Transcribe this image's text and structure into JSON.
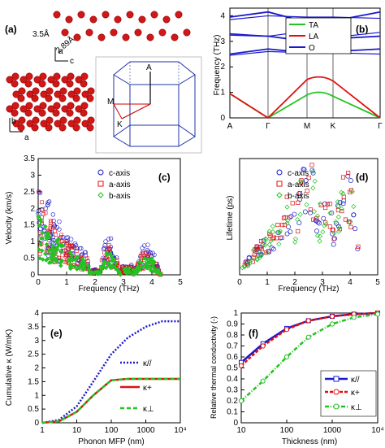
{
  "panels": {
    "a": {
      "label": "(a)",
      "dist1": "3.5Å",
      "dist2": "2.89Å",
      "axis_top": {
        "up": "a",
        "right": "c"
      },
      "axis_bottom": {
        "up": "b",
        "right": "a"
      },
      "bz_points": {
        "A": "A",
        "M": "M",
        "K": "K"
      }
    },
    "b": {
      "label": "(b)",
      "ylabel": "Frequency (THz)",
      "yticks": [
        "0",
        "1",
        "2",
        "3",
        "4"
      ],
      "xticks": [
        "A",
        "Γ",
        "M",
        "K",
        "Γ"
      ],
      "legend": [
        "TA",
        "LA",
        "O"
      ],
      "colors": {
        "TA": "#22c422",
        "LA": "#e01010",
        "O": "#1a1acc"
      }
    },
    "c": {
      "label": "(c)",
      "ylabel": "Velocity (km/s)",
      "xlabel": "Frequency (THz)",
      "yticks": [
        "0",
        "0.5",
        "1",
        "1.5",
        "2",
        "2.5",
        "3",
        "3.5"
      ],
      "xticks": [
        "0",
        "1",
        "2",
        "3",
        "4",
        "5"
      ],
      "legend": [
        "c-axis",
        "a-axis",
        "b-axis"
      ]
    },
    "d": {
      "label": "(d)",
      "ylabel": "Lifetime (ps)",
      "xlabel": "Frequency (THz)",
      "xticks": [
        "0",
        "1",
        "2",
        "3",
        "4",
        "5"
      ],
      "legend": [
        "c-axis",
        "a-axis",
        "b-axis"
      ]
    },
    "e": {
      "label": "(e)",
      "ylabel": "Cumulative κ (W/mK)",
      "xlabel": "Phonon MFP (nm)",
      "yticks": [
        "0",
        "0.5",
        "1",
        "1.5",
        "2",
        "2.5",
        "3",
        "3.5",
        "4"
      ],
      "xticks": [
        "1",
        "10",
        "100",
        "1000",
        "10⁴"
      ],
      "legend": [
        "κ//",
        "κ+",
        "κ⊥"
      ]
    },
    "f": {
      "label": "(f)",
      "ylabel": "Relative thermal conductivity (-)",
      "xlabel": "Thickness (nm)",
      "yticks": [
        "0",
        "0.1",
        "0.2",
        "0.3",
        "0.4",
        "0.5",
        "0.6",
        "0.7",
        "0.8",
        "0.9",
        "1"
      ],
      "xticks": [
        "10",
        "100",
        "1000",
        "10⁴"
      ],
      "legend": [
        "κ//",
        "κ+",
        "κ⊥"
      ]
    }
  },
  "chart_data": [
    {
      "type": "line",
      "panel": "b",
      "ylabel": "Frequency (THz)",
      "ylim": [
        0,
        4.3
      ],
      "categories": [
        "A",
        "Γ",
        "M",
        "K",
        "Γ"
      ],
      "series": [
        {
          "name": "TA",
          "values": [
            0.95,
            0,
            0.9,
            0.85,
            0
          ]
        },
        {
          "name": "LA",
          "values": [
            0.95,
            0,
            1.5,
            1.45,
            0
          ]
        },
        {
          "name": "O",
          "values": [
            2.5,
            2.7,
            2.55,
            2.6,
            2.7
          ]
        },
        {
          "name": "O",
          "values": [
            3.25,
            3.2,
            3.0,
            3.1,
            3.2
          ]
        },
        {
          "name": "O",
          "values": [
            3.95,
            4.15,
            3.75,
            3.8,
            4.15
          ]
        }
      ]
    },
    {
      "type": "scatter",
      "panel": "c",
      "xlabel": "Frequency (THz)",
      "ylabel": "Velocity (km/s)",
      "xlim": [
        0,
        5
      ],
      "ylim": [
        0,
        3.5
      ],
      "series": [
        {
          "name": "c-axis",
          "x": [
            0.2,
            0.4,
            0.6,
            0.9,
            1.2,
            2.4,
            2.6,
            3.6,
            3.9
          ],
          "values": [
            2.9,
            2.5,
            2.2,
            1.8,
            1.2,
            1.0,
            1.1,
            0.7,
            0.8
          ]
        },
        {
          "name": "a-axis",
          "x": [
            0.2,
            0.4,
            0.6,
            0.9,
            1.3,
            2.5,
            3.7
          ],
          "values": [
            2.0,
            1.7,
            1.5,
            1.2,
            0.8,
            0.6,
            0.4
          ]
        },
        {
          "name": "b-axis",
          "x": [
            0.2,
            0.5,
            0.8,
            1.2,
            2.5,
            3.8
          ],
          "values": [
            1.6,
            1.2,
            1.0,
            0.7,
            0.5,
            0.4
          ]
        }
      ]
    },
    {
      "type": "scatter",
      "panel": "d",
      "xlabel": "Frequency (THz)",
      "ylabel": "Lifetime (ps)",
      "xlim": [
        0,
        5
      ],
      "series": [
        {
          "name": "c-axis",
          "x": [
            0.2,
            0.6,
            1.0,
            1.5,
            2.0,
            2.4,
            2.6,
            3.4,
            3.7,
            4.1
          ],
          "values": [
            0.1,
            0.3,
            0.5,
            0.6,
            0.7,
            1.0,
            0.9,
            0.9,
            0.8,
            0.4
          ]
        },
        {
          "name": "a-axis",
          "x": [
            0.5,
            1.0,
            1.5,
            2.4,
            3.6,
            4.0
          ],
          "values": [
            0.2,
            0.5,
            0.6,
            0.9,
            0.8,
            0.4
          ]
        },
        {
          "name": "b-axis",
          "x": [
            0.5,
            1.2,
            2.5,
            3.8
          ],
          "values": [
            0.2,
            0.5,
            0.8,
            0.6
          ]
        }
      ]
    },
    {
      "type": "line",
      "panel": "e",
      "xlabel": "Phonon MFP (nm)",
      "ylabel": "Cumulative κ (W/mK)",
      "xscale": "log",
      "xlim": [
        1,
        10000
      ],
      "ylim": [
        0,
        4
      ],
      "x": [
        1,
        3,
        10,
        30,
        100,
        300,
        1000,
        3000,
        10000
      ],
      "series": [
        {
          "name": "κ//",
          "values": [
            0,
            0.1,
            0.6,
            1.5,
            2.5,
            3.1,
            3.5,
            3.7,
            3.7
          ]
        },
        {
          "name": "κ+",
          "values": [
            0,
            0.05,
            0.4,
            1.0,
            1.55,
            1.6,
            1.6,
            1.6,
            1.6
          ]
        },
        {
          "name": "κ⊥",
          "values": [
            0,
            0.05,
            0.4,
            1.0,
            1.55,
            1.6,
            1.6,
            1.6,
            1.6
          ]
        }
      ]
    },
    {
      "type": "line",
      "panel": "f",
      "xlabel": "Thickness (nm)",
      "ylabel": "Relative thermal conductivity (-)",
      "xscale": "log",
      "xlim": [
        10,
        10000
      ],
      "ylim": [
        0,
        1
      ],
      "x": [
        10,
        30,
        100,
        300,
        1000,
        3000,
        10000
      ],
      "series": [
        {
          "name": "κ//",
          "values": [
            0.55,
            0.72,
            0.86,
            0.93,
            0.97,
            0.99,
            1.0
          ]
        },
        {
          "name": "κ+",
          "values": [
            0.52,
            0.7,
            0.85,
            0.93,
            0.97,
            0.99,
            1.0
          ]
        },
        {
          "name": "κ⊥",
          "values": [
            0.2,
            0.38,
            0.6,
            0.78,
            0.9,
            0.96,
            0.99
          ]
        }
      ]
    }
  ]
}
